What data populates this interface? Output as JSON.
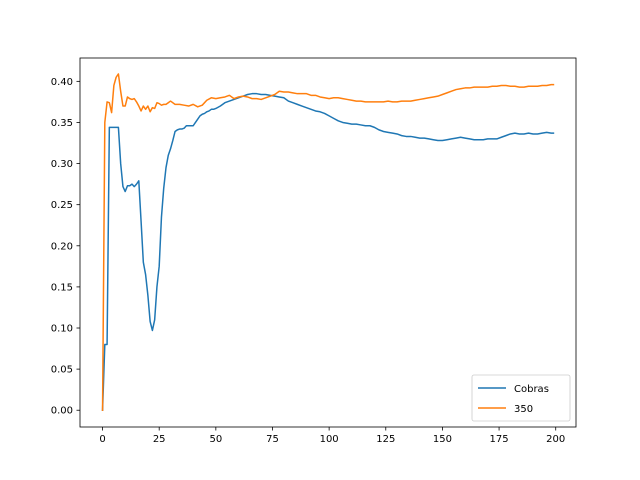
{
  "chart_data": {
    "type": "line",
    "title": "",
    "xlabel": "",
    "ylabel": "",
    "xlim": [
      -9.95,
      208.95
    ],
    "ylim": [
      -0.0204,
      0.4284
    ],
    "xticks": [
      0,
      25,
      50,
      75,
      100,
      125,
      150,
      175,
      200
    ],
    "yticks": [
      0.0,
      0.05,
      0.1,
      0.15,
      0.2,
      0.25,
      0.3,
      0.35,
      0.4
    ],
    "grid": false,
    "legend_position": "lower-right",
    "series": [
      {
        "name": "Cobras",
        "color": "#1f77b4",
        "x": [
          0,
          1,
          2,
          3,
          4,
          5,
          6,
          7,
          8,
          9,
          10,
          11,
          12,
          13,
          14,
          15,
          16,
          17,
          18,
          19,
          20,
          21,
          22,
          23,
          24,
          25,
          26,
          27,
          28,
          29,
          30,
          31,
          32,
          33,
          34,
          35,
          36,
          37,
          38,
          39,
          40,
          41,
          42,
          43,
          44,
          45,
          46,
          47,
          48,
          49,
          50,
          52,
          54,
          56,
          58,
          60,
          62,
          64,
          66,
          68,
          70,
          72,
          74,
          76,
          78,
          80,
          82,
          84,
          86,
          88,
          90,
          92,
          94,
          96,
          98,
          100,
          102,
          104,
          106,
          108,
          110,
          112,
          114,
          116,
          118,
          120,
          122,
          124,
          126,
          128,
          130,
          132,
          134,
          136,
          138,
          140,
          142,
          144,
          146,
          148,
          150,
          152,
          154,
          156,
          158,
          160,
          162,
          164,
          166,
          168,
          170,
          172,
          174,
          176,
          178,
          180,
          182,
          184,
          186,
          188,
          190,
          192,
          194,
          196,
          198,
          199
        ],
        "values": [
          0.0,
          0.08,
          0.08,
          0.344,
          0.344,
          0.344,
          0.344,
          0.344,
          0.3,
          0.272,
          0.266,
          0.273,
          0.273,
          0.275,
          0.272,
          0.275,
          0.279,
          0.23,
          0.18,
          0.165,
          0.14,
          0.108,
          0.097,
          0.11,
          0.15,
          0.175,
          0.235,
          0.27,
          0.295,
          0.31,
          0.318,
          0.328,
          0.339,
          0.341,
          0.342,
          0.342,
          0.343,
          0.346,
          0.346,
          0.346,
          0.346,
          0.35,
          0.354,
          0.358,
          0.36,
          0.361,
          0.363,
          0.364,
          0.366,
          0.366,
          0.367,
          0.37,
          0.374,
          0.376,
          0.378,
          0.38,
          0.382,
          0.384,
          0.385,
          0.385,
          0.384,
          0.384,
          0.383,
          0.382,
          0.381,
          0.38,
          0.376,
          0.374,
          0.372,
          0.37,
          0.368,
          0.366,
          0.364,
          0.363,
          0.361,
          0.358,
          0.355,
          0.352,
          0.35,
          0.349,
          0.348,
          0.348,
          0.347,
          0.346,
          0.346,
          0.344,
          0.341,
          0.339,
          0.338,
          0.337,
          0.336,
          0.334,
          0.333,
          0.333,
          0.332,
          0.331,
          0.331,
          0.33,
          0.329,
          0.328,
          0.328,
          0.329,
          0.33,
          0.331,
          0.332,
          0.331,
          0.33,
          0.329,
          0.329,
          0.329,
          0.33,
          0.33,
          0.33,
          0.332,
          0.334,
          0.336,
          0.337,
          0.336,
          0.336,
          0.337,
          0.336,
          0.336,
          0.337,
          0.338,
          0.337,
          0.337
        ]
      },
      {
        "name": "350",
        "color": "#ff7f0e",
        "x": [
          0,
          1,
          2,
          3,
          4,
          5,
          6,
          7,
          8,
          9,
          10,
          11,
          12,
          13,
          14,
          15,
          16,
          17,
          18,
          19,
          20,
          21,
          22,
          23,
          24,
          25,
          26,
          27,
          28,
          29,
          30,
          32,
          34,
          36,
          38,
          40,
          42,
          44,
          46,
          48,
          50,
          52,
          54,
          56,
          58,
          60,
          62,
          64,
          66,
          68,
          70,
          72,
          74,
          76,
          78,
          80,
          82,
          84,
          86,
          88,
          90,
          92,
          94,
          96,
          98,
          100,
          102,
          104,
          106,
          108,
          110,
          112,
          114,
          116,
          118,
          120,
          122,
          124,
          126,
          128,
          130,
          132,
          134,
          136,
          138,
          140,
          142,
          144,
          146,
          148,
          150,
          152,
          154,
          156,
          158,
          160,
          162,
          164,
          166,
          168,
          170,
          172,
          174,
          176,
          178,
          180,
          182,
          184,
          186,
          188,
          190,
          192,
          194,
          196,
          198,
          199
        ],
        "values": [
          0.0,
          0.35,
          0.375,
          0.374,
          0.362,
          0.395,
          0.405,
          0.409,
          0.388,
          0.37,
          0.37,
          0.381,
          0.379,
          0.378,
          0.379,
          0.375,
          0.37,
          0.364,
          0.37,
          0.366,
          0.37,
          0.363,
          0.368,
          0.367,
          0.374,
          0.373,
          0.371,
          0.372,
          0.372,
          0.374,
          0.376,
          0.372,
          0.372,
          0.371,
          0.37,
          0.372,
          0.369,
          0.371,
          0.377,
          0.38,
          0.379,
          0.38,
          0.381,
          0.383,
          0.379,
          0.381,
          0.382,
          0.381,
          0.379,
          0.379,
          0.378,
          0.38,
          0.382,
          0.384,
          0.388,
          0.387,
          0.387,
          0.386,
          0.385,
          0.385,
          0.385,
          0.383,
          0.383,
          0.381,
          0.38,
          0.379,
          0.38,
          0.38,
          0.379,
          0.378,
          0.377,
          0.376,
          0.376,
          0.375,
          0.375,
          0.375,
          0.375,
          0.375,
          0.376,
          0.375,
          0.375,
          0.376,
          0.376,
          0.376,
          0.377,
          0.378,
          0.379,
          0.38,
          0.381,
          0.382,
          0.384,
          0.386,
          0.388,
          0.39,
          0.391,
          0.392,
          0.392,
          0.393,
          0.393,
          0.393,
          0.393,
          0.394,
          0.394,
          0.395,
          0.395,
          0.394,
          0.394,
          0.393,
          0.393,
          0.394,
          0.394,
          0.394,
          0.395,
          0.395,
          0.396,
          0.396
        ]
      }
    ]
  }
}
